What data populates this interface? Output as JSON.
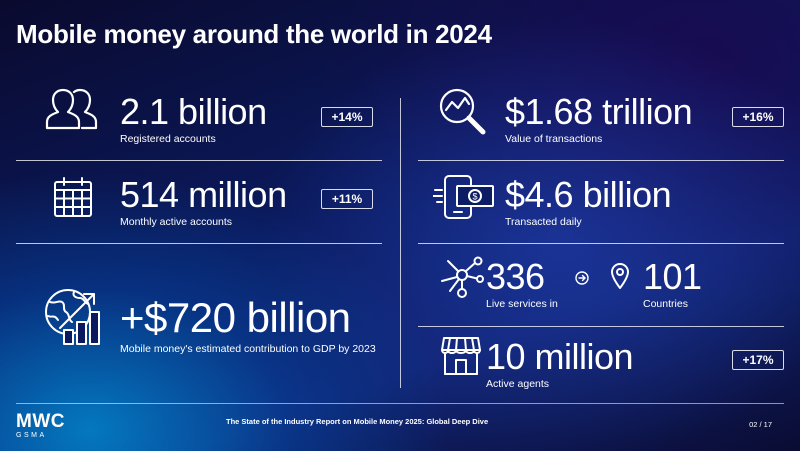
{
  "title": "Mobile money around the world in 2024",
  "stats": {
    "registered": {
      "value": "2.1 billion",
      "label": "Registered accounts",
      "change": "+14%"
    },
    "monthly": {
      "value": "514 million",
      "label": "Monthly active accounts",
      "change": "+11%"
    },
    "gdp": {
      "value": "+$720 billion",
      "label": "Mobile money's estimated contribution to GDP by 2023"
    },
    "transactions": {
      "value": "$1.68 trillion",
      "label": "Value of transactions",
      "change": "+16%"
    },
    "daily": {
      "value": "$4.6 billion",
      "label": "Transacted daily"
    },
    "services": {
      "value": "336",
      "label": "Live services in"
    },
    "countries": {
      "value": "101",
      "label": "Countries"
    },
    "agents": {
      "value": "10 million",
      "label": "Active agents",
      "change": "+17%"
    }
  },
  "footer": {
    "report": "The State of the Industry Report on Mobile Money 2025: Global Deep Dive",
    "page": "02 / 17",
    "logo_main": "MWC",
    "logo_sub": "GSMA"
  },
  "icons": [
    "users-icon",
    "calendar-icon",
    "globe-growth-icon",
    "chart-magnifier-icon",
    "phone-cash-icon",
    "network-icon",
    "arrow-right-circle-icon",
    "location-pin-icon",
    "storefront-icon"
  ]
}
